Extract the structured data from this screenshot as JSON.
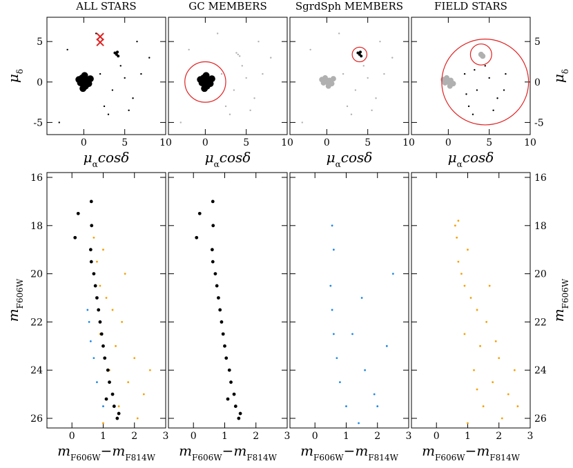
{
  "chart_data": [
    {
      "type": "scatter",
      "title": "ALL STARS",
      "xlabel": [
        {
          "t": "μ"
        },
        {
          "t": "α",
          "sub": true
        },
        {
          "t": "cosδ"
        }
      ],
      "ylabel": [
        {
          "t": "μ"
        },
        {
          "t": "δ",
          "sub": true
        }
      ],
      "ylabel_side": "left",
      "xlim": [
        -4.5,
        10
      ],
      "ylim": [
        -6.5,
        8
      ],
      "xticks": [
        0,
        5,
        10
      ],
      "yticks": [
        -5,
        0,
        5
      ],
      "series": [
        {
          "name": "GC",
          "color": "#000000",
          "size": 5,
          "x": [
            0,
            0.3,
            -0.4,
            0.2,
            -0.2,
            0.6,
            -0.6,
            0.1,
            -0.1,
            0.8
          ],
          "y": [
            0,
            0.2,
            -0.1,
            -0.5,
            0.5,
            -0.2,
            0.3,
            0.8,
            -0.8,
            0.4
          ]
        },
        {
          "name": "Sgr",
          "color": "#000000",
          "size": 2,
          "x": [
            4,
            4.2,
            3.8,
            4.1
          ],
          "y": [
            3.4,
            3.2,
            3.6,
            3.7
          ]
        },
        {
          "name": "field",
          "color": "#000000",
          "size": 1.2,
          "x": [
            2,
            3.5,
            5,
            6,
            4.5,
            2.5,
            7,
            3,
            -2,
            8,
            -3,
            5.5,
            1.5,
            6.5
          ],
          "y": [
            1,
            -1,
            0.5,
            -2,
            2,
            -3,
            1,
            -4,
            4,
            3,
            -5,
            -3.5,
            6,
            5
          ]
        }
      ],
      "markers": {
        "color": "#e02020",
        "x": [
          2,
          2
        ],
        "y": [
          5.6,
          4.9
        ]
      }
    },
    {
      "type": "scatter",
      "title": "GC MEMBERS",
      "xlabel": [
        {
          "t": "μ"
        },
        {
          "t": "α",
          "sub": true
        },
        {
          "t": "cosδ"
        }
      ],
      "ylabel_side": "none",
      "xlim": [
        -4.5,
        10
      ],
      "ylim": [
        -6.5,
        8
      ],
      "xticks": [
        0,
        5,
        10
      ],
      "yticks": [
        -5,
        0,
        5
      ],
      "series": [
        {
          "name": "other",
          "color": "#b0b0b0",
          "size": 1.2,
          "x": [
            4,
            4.2,
            3.8,
            2,
            3.5,
            5,
            6,
            4.5,
            2.5,
            7,
            3,
            -2,
            8,
            -3,
            5.5,
            1.5,
            6.5
          ],
          "y": [
            3.4,
            3.2,
            3.6,
            1,
            -1,
            0.5,
            -2,
            2,
            -3,
            1,
            -4,
            4,
            3,
            -5,
            -3.5,
            6,
            5
          ]
        },
        {
          "name": "GC",
          "color": "#000000",
          "size": 5,
          "x": [
            0,
            0.3,
            -0.4,
            0.2,
            -0.2,
            0.6,
            -0.6,
            0.1,
            -0.1,
            0.8
          ],
          "y": [
            0,
            0.2,
            -0.1,
            -0.5,
            0.5,
            -0.2,
            0.3,
            0.8,
            -0.8,
            0.4
          ]
        }
      ],
      "regions": [
        {
          "cx": 0,
          "cy": 0,
          "r": 2.5
        }
      ]
    },
    {
      "type": "scatter",
      "title": "SgrdSph MEMBERS",
      "xlabel": [
        {
          "t": "μ"
        },
        {
          "t": "α",
          "sub": true
        },
        {
          "t": "cosδ"
        }
      ],
      "ylabel_side": "none",
      "xlim": [
        -4.5,
        10
      ],
      "ylim": [
        -6.5,
        8
      ],
      "xticks": [
        0,
        5,
        10
      ],
      "yticks": [
        -5,
        0,
        5
      ],
      "series": [
        {
          "name": "other",
          "color": "#b0b0b0",
          "size": 4,
          "x": [
            0,
            0.3,
            -0.4,
            0.2,
            -0.2,
            0.6,
            -0.6,
            0.8
          ],
          "y": [
            0,
            0.2,
            -0.1,
            -0.5,
            0.5,
            -0.2,
            0.3,
            0.4
          ]
        },
        {
          "name": "other-field",
          "color": "#b0b0b0",
          "size": 1.2,
          "x": [
            2,
            3.5,
            5,
            6,
            4.5,
            2.5,
            7,
            3,
            -2,
            8,
            -3,
            5.5,
            1.5,
            6.5
          ],
          "y": [
            1,
            -1,
            0.5,
            -2,
            2,
            -3,
            1,
            -4,
            4,
            3,
            -5,
            -3.5,
            6,
            5
          ]
        },
        {
          "name": "Sgr",
          "color": "#000000",
          "size": 2,
          "x": [
            4,
            4.2,
            3.8,
            4.1
          ],
          "y": [
            3.4,
            3.2,
            3.6,
            3.7
          ]
        }
      ],
      "regions": [
        {
          "cx": 4,
          "cy": 3.4,
          "r": 0.9
        }
      ]
    },
    {
      "type": "scatter",
      "title": "FIELD STARS",
      "xlabel": [
        {
          "t": "μ"
        },
        {
          "t": "α",
          "sub": true
        },
        {
          "t": "cosδ"
        }
      ],
      "ylabel": [
        {
          "t": "μ"
        },
        {
          "t": "δ",
          "sub": true
        }
      ],
      "ylabel_side": "right",
      "xlim": [
        -4.5,
        10
      ],
      "ylim": [
        -6.5,
        8
      ],
      "xticks": [
        0,
        5,
        10
      ],
      "yticks": [
        -5,
        0,
        5
      ],
      "series": [
        {
          "name": "other",
          "color": "#b0b0b0",
          "size": 4,
          "x": [
            0,
            0.3,
            -0.4,
            0.2,
            -0.2,
            0.6,
            -0.6,
            4,
            4.2
          ],
          "y": [
            0,
            0.2,
            -0.1,
            -0.5,
            0.5,
            -0.2,
            0.3,
            3.4,
            3.2
          ]
        },
        {
          "name": "field",
          "color": "#000000",
          "size": 1.2,
          "x": [
            2,
            3.5,
            5,
            6,
            4.5,
            2.5,
            7,
            3,
            5.5,
            3.2,
            6.8,
            2.2
          ],
          "y": [
            1,
            -1,
            0.5,
            -2,
            2,
            -3,
            1,
            -4,
            -3.5,
            1.5,
            -1,
            -1.5
          ]
        }
      ],
      "regions": [
        {
          "cx": 4.5,
          "cy": 0,
          "r": 5.3
        },
        {
          "cx": 4,
          "cy": 3.4,
          "r": 1.3
        }
      ]
    },
    {
      "type": "scatter",
      "xlabel": [
        {
          "t": "m"
        },
        {
          "t": "F606W",
          "sub": true
        },
        {
          "t": "−m"
        },
        {
          "t": "F814W",
          "sub": true
        }
      ],
      "ylabel": [
        {
          "t": "m"
        },
        {
          "t": "F606W",
          "sub": true
        }
      ],
      "ylabel_side": "left",
      "xlim": [
        -0.8,
        3
      ],
      "ylim": [
        26.4,
        15.8
      ],
      "xticks": [
        0,
        1,
        2,
        3
      ],
      "yticks": [
        16,
        18,
        20,
        22,
        24,
        26
      ],
      "series": [
        {
          "name": "orange",
          "color": "#f5a000",
          "size": 1.4,
          "x": [
            0.7,
            0.8,
            0.9,
            1.1,
            1.3,
            1.6,
            0.9,
            1.4,
            2,
            1.2,
            1.8,
            2.3,
            1.5,
            2.1,
            1,
            1.7,
            2.5,
            1
          ],
          "y": [
            18.5,
            19.5,
            20.5,
            21,
            21.5,
            22,
            22.5,
            23,
            23.5,
            24,
            24.5,
            25,
            25.5,
            26,
            19,
            20,
            24,
            26.2
          ]
        },
        {
          "name": "blue",
          "color": "#1e88e5",
          "size": 1.4,
          "x": [
            0.5,
            0.55,
            0.6,
            0.7,
            0.8,
            1
          ],
          "y": [
            21.5,
            22,
            22.8,
            23.5,
            24.5,
            25.5
          ]
        },
        {
          "name": "black",
          "color": "#000000",
          "size": 2.4,
          "x": [
            0.62,
            0.63,
            0.6,
            0.62,
            0.7,
            0.75,
            0.8,
            0.85,
            0.9,
            0.95,
            1,
            1.05,
            1.15,
            1.2,
            1.3,
            1.35,
            1.45,
            1.1,
            1.5,
            0.2,
            0.1
          ],
          "y": [
            17,
            18,
            19,
            19.5,
            20,
            20.5,
            21,
            21.5,
            22,
            22.5,
            23,
            23.5,
            24,
            24.5,
            25,
            25.5,
            26,
            25.2,
            25.8,
            17.5,
            18.5
          ]
        }
      ]
    },
    {
      "type": "scatter",
      "xlabel": [
        {
          "t": "m"
        },
        {
          "t": "F606W",
          "sub": true
        },
        {
          "t": "−m"
        },
        {
          "t": "F814W",
          "sub": true
        }
      ],
      "ylabel_side": "none",
      "xlim": [
        -0.8,
        3
      ],
      "ylim": [
        26.4,
        15.8
      ],
      "xticks": [
        0,
        1,
        2,
        3
      ],
      "yticks": [
        16,
        18,
        20,
        22,
        24,
        26
      ],
      "series": [
        {
          "name": "black",
          "color": "#000000",
          "size": 2.4,
          "x": [
            0.62,
            0.63,
            0.6,
            0.62,
            0.7,
            0.75,
            0.8,
            0.85,
            0.9,
            0.95,
            1,
            1.05,
            1.15,
            1.2,
            1.3,
            1.35,
            1.45,
            1.1,
            1.5,
            0.2,
            0.1
          ],
          "y": [
            17,
            18,
            19,
            19.5,
            20,
            20.5,
            21,
            21.5,
            22,
            22.5,
            23,
            23.5,
            24,
            24.5,
            25,
            25.5,
            26,
            25.2,
            25.8,
            17.5,
            18.5
          ]
        }
      ]
    },
    {
      "type": "scatter",
      "xlabel": [
        {
          "t": "m"
        },
        {
          "t": "F606W",
          "sub": true
        },
        {
          "t": "−m"
        },
        {
          "t": "F814W",
          "sub": true
        }
      ],
      "ylabel_side": "none",
      "xlim": [
        -0.8,
        3
      ],
      "ylim": [
        26.4,
        15.8
      ],
      "xticks": [
        0,
        1,
        2,
        3
      ],
      "yticks": [
        16,
        18,
        20,
        22,
        24,
        26
      ],
      "series": [
        {
          "name": "blue",
          "color": "#1e88e5",
          "size": 1.4,
          "x": [
            0.55,
            0.6,
            0.5,
            0.55,
            0.6,
            0.7,
            0.8,
            1,
            1.4,
            1.6,
            1.9,
            2.3,
            2.5,
            1.5,
            1.2,
            2
          ],
          "y": [
            18,
            19,
            20.5,
            21.5,
            22.5,
            23.5,
            24.5,
            25.5,
            26.2,
            24,
            25,
            23,
            20,
            21,
            22.5,
            25.5
          ]
        }
      ]
    },
    {
      "type": "scatter",
      "xlabel": [
        {
          "t": "m"
        },
        {
          "t": "F606W",
          "sub": true
        },
        {
          "t": "−m"
        },
        {
          "t": "F814W",
          "sub": true
        }
      ],
      "ylabel": [
        {
          "t": "m"
        },
        {
          "t": "F606W",
          "sub": true
        }
      ],
      "ylabel_side": "right",
      "xlim": [
        -0.8,
        3
      ],
      "ylim": [
        26.4,
        15.8
      ],
      "xticks": [
        0,
        1,
        2,
        3
      ],
      "yticks": [
        16,
        18,
        20,
        22,
        24,
        26
      ],
      "series": [
        {
          "name": "orange",
          "color": "#f5a000",
          "size": 1.4,
          "x": [
            0.6,
            0.65,
            0.7,
            0.8,
            0.9,
            1.1,
            1.3,
            1.6,
            0.9,
            1.4,
            2,
            1.2,
            1.8,
            2.3,
            1.5,
            2.1,
            1,
            1.7,
            2.5,
            1,
            0.7,
            1.9,
            2.6,
            1.3
          ],
          "y": [
            18,
            18.5,
            19.5,
            20,
            20.5,
            21,
            21.5,
            22,
            22.5,
            23,
            23.5,
            24,
            24.5,
            25,
            25.5,
            26,
            19,
            20.5,
            24,
            26.2,
            17.8,
            22.8,
            25.5,
            24.8
          ]
        }
      ]
    }
  ]
}
